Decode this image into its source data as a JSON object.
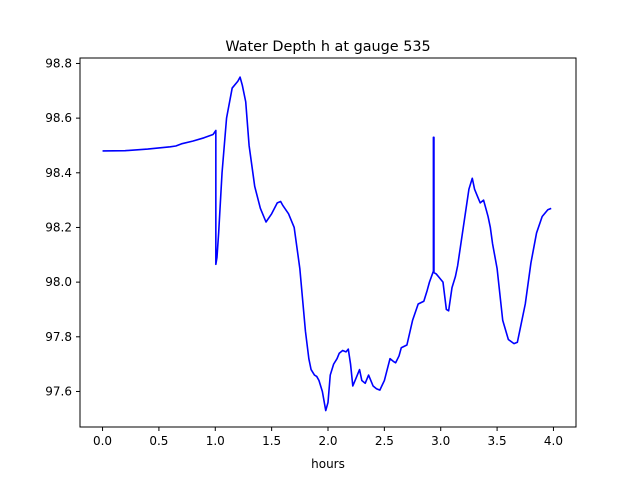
{
  "chart_data": {
    "type": "line",
    "title": "Water Depth h at gauge 535",
    "xlabel": "hours",
    "ylabel": "",
    "xlim": [
      -0.2,
      4.2
    ],
    "ylim": [
      97.47,
      98.82
    ],
    "xticks": [
      0.0,
      0.5,
      1.0,
      1.5,
      2.0,
      2.5,
      3.0,
      3.5,
      4.0
    ],
    "xtick_labels": [
      "0.0",
      "0.5",
      "1.0",
      "1.5",
      "2.0",
      "2.5",
      "3.0",
      "3.5",
      "4.0"
    ],
    "yticks": [
      97.6,
      97.8,
      98.0,
      98.2,
      98.4,
      98.6,
      98.8
    ],
    "ytick_labels": [
      "97.6",
      "97.8",
      "98.0",
      "98.2",
      "98.4",
      "98.6",
      "98.8"
    ],
    "grid": false,
    "legend": "none",
    "series": [
      {
        "color": "#0000ff",
        "x": [
          0.0,
          0.2,
          0.4,
          0.6,
          0.65,
          0.7,
          0.8,
          0.9,
          0.98,
          1.005,
          1.005,
          1.015,
          1.03,
          1.06,
          1.1,
          1.15,
          1.2,
          1.22,
          1.24,
          1.27,
          1.3,
          1.35,
          1.4,
          1.45,
          1.5,
          1.55,
          1.58,
          1.6,
          1.65,
          1.7,
          1.75,
          1.8,
          1.83,
          1.85,
          1.88,
          1.9,
          1.92,
          1.95,
          1.98,
          2.0,
          2.02,
          2.05,
          2.08,
          2.1,
          2.13,
          2.16,
          2.18,
          2.2,
          2.22,
          2.25,
          2.28,
          2.3,
          2.33,
          2.36,
          2.4,
          2.43,
          2.46,
          2.5,
          2.55,
          2.58,
          2.6,
          2.63,
          2.65,
          2.7,
          2.75,
          2.8,
          2.85,
          2.88,
          2.9,
          2.935,
          2.935,
          2.94,
          2.94,
          2.96,
          2.98,
          3.0,
          3.02,
          3.05,
          3.07,
          3.1,
          3.13,
          3.15,
          3.2,
          3.25,
          3.28,
          3.3,
          3.33,
          3.35,
          3.38,
          3.4,
          3.42,
          3.44,
          3.46,
          3.5,
          3.55,
          3.6,
          3.65,
          3.68,
          3.7,
          3.75,
          3.8,
          3.85,
          3.9,
          3.95,
          3.98
        ],
        "y": [
          98.48,
          98.481,
          98.487,
          98.495,
          98.498,
          98.506,
          98.516,
          98.528,
          98.54,
          98.555,
          98.065,
          98.09,
          98.18,
          98.4,
          98.6,
          98.71,
          98.735,
          98.75,
          98.72,
          98.66,
          98.5,
          98.35,
          98.27,
          98.22,
          98.25,
          98.29,
          98.295,
          98.28,
          98.25,
          98.2,
          98.05,
          97.82,
          97.72,
          97.68,
          97.66,
          97.655,
          97.64,
          97.6,
          97.53,
          97.56,
          97.66,
          97.7,
          97.72,
          97.74,
          97.75,
          97.745,
          97.755,
          97.7,
          97.62,
          97.65,
          97.68,
          97.64,
          97.63,
          97.66,
          97.62,
          97.61,
          97.605,
          97.64,
          97.72,
          97.71,
          97.705,
          97.73,
          97.76,
          97.77,
          97.86,
          97.92,
          97.93,
          97.97,
          98.0,
          98.04,
          98.53,
          98.53,
          98.035,
          98.03,
          98.02,
          98.01,
          98.0,
          97.9,
          97.895,
          97.98,
          98.02,
          98.06,
          98.2,
          98.34,
          98.38,
          98.34,
          98.31,
          98.29,
          98.3,
          98.27,
          98.24,
          98.2,
          98.14,
          98.05,
          97.86,
          97.79,
          97.775,
          97.78,
          97.82,
          97.92,
          98.07,
          98.18,
          98.24,
          98.265,
          98.27
        ]
      }
    ]
  }
}
